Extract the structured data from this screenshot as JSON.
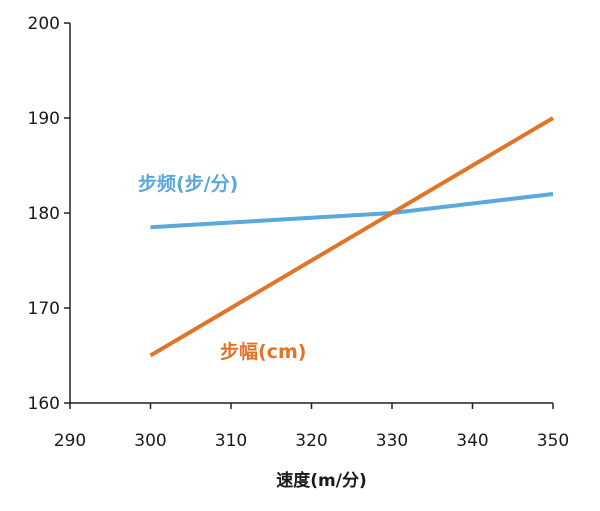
{
  "chart_data": {
    "type": "line",
    "title": "",
    "xlabel": "速度(m/分)",
    "ylabel": "",
    "xlim": [
      290,
      350
    ],
    "ylim": [
      160,
      200
    ],
    "xticks": [
      "290",
      "300",
      "310",
      "320",
      "330",
      "340",
      "350"
    ],
    "yticks": [
      "160",
      "170",
      "180",
      "190",
      "200"
    ],
    "grid": false,
    "legend": "none",
    "series": [
      {
        "name": "步频(步/分)",
        "color": "#5aa8dc",
        "x": [
          300,
          310,
          320,
          330,
          340,
          350
        ],
        "y": [
          178.5,
          179.0,
          179.5,
          180.0,
          181.0,
          182.0
        ]
      },
      {
        "name": "步幅(cm)",
        "color": "#e0752a",
        "x": [
          300,
          310,
          320,
          330,
          340,
          350
        ],
        "y": [
          165,
          170,
          175,
          180,
          185,
          190
        ]
      }
    ]
  }
}
